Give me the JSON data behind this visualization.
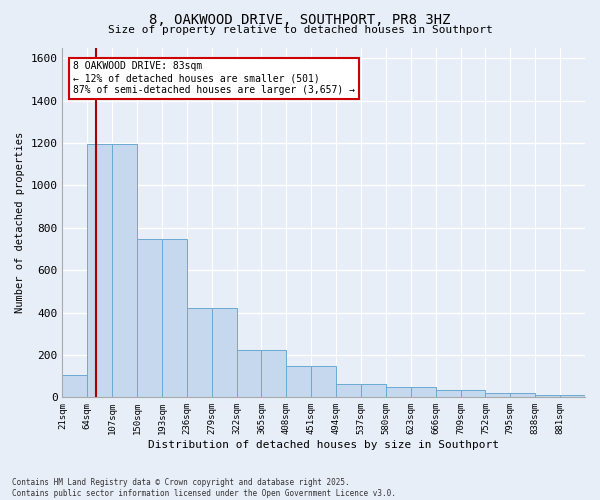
{
  "title_line1": "8, OAKWOOD DRIVE, SOUTHPORT, PR8 3HZ",
  "title_line2": "Size of property relative to detached houses in Southport",
  "xlabel": "Distribution of detached houses by size in Southport",
  "ylabel": "Number of detached properties",
  "categories": [
    "21sqm",
    "64sqm",
    "107sqm",
    "150sqm",
    "193sqm",
    "236sqm",
    "279sqm",
    "322sqm",
    "365sqm",
    "408sqm",
    "451sqm",
    "494sqm",
    "537sqm",
    "580sqm",
    "623sqm",
    "666sqm",
    "709sqm",
    "752sqm",
    "795sqm",
    "838sqm",
    "881sqm"
  ],
  "bar_heights": [
    105,
    1195,
    1195,
    745,
    745,
    420,
    420,
    225,
    225,
    150,
    150,
    65,
    65,
    50,
    50,
    35,
    35,
    20,
    20,
    10,
    10
  ],
  "bar_color": "#c5d8ed",
  "bar_edge_color": "#6aaad4",
  "vline_color": "#aa0000",
  "vline_x": 1.35,
  "ylim_max": 1650,
  "yticks": [
    0,
    200,
    400,
    600,
    800,
    1000,
    1200,
    1400,
    1600
  ],
  "bg_color": "#e8eef8",
  "plot_bg_color": "#e8eef8",
  "grid_color": "#ffffff",
  "ann_text_line1": "8 OAKWOOD DRIVE: 83sqm",
  "ann_text_line2": "← 12% of detached houses are smaller (501)",
  "ann_text_line3": "87% of semi-detached houses are larger (3,657) →",
  "ann_box_color": "#ffffff",
  "ann_edge_color": "#cc0000",
  "footer_line1": "Contains HM Land Registry data © Crown copyright and database right 2025.",
  "footer_line2": "Contains public sector information licensed under the Open Government Licence v3.0."
}
